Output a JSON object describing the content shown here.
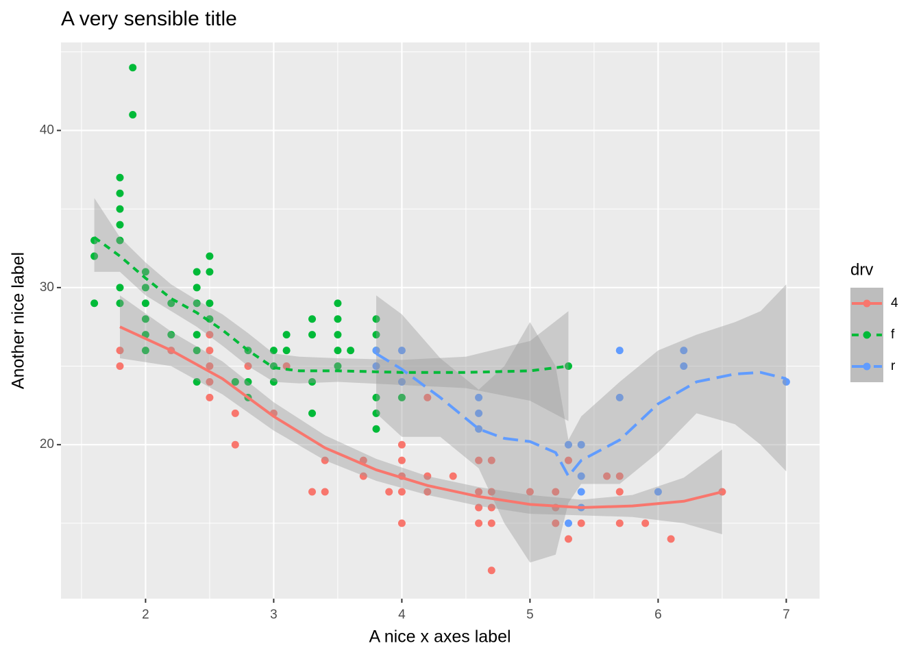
{
  "chart_data": {
    "type": "scatter",
    "title": "A very sensible title",
    "x_label": "A nice x axes label",
    "y_label": "Another nice label",
    "legend_title": "drv",
    "legend_position": "right",
    "grid": true,
    "xlim": [
      1.34,
      7.26
    ],
    "ylim": [
      10.2,
      45.6
    ],
    "xticks": [
      2,
      3,
      4,
      5,
      6,
      7
    ],
    "yticks": [
      20,
      30,
      40
    ],
    "xminor": [
      1.5,
      2.5,
      3.5,
      4.5,
      5.5,
      6.5
    ],
    "yminor": [
      15,
      25,
      35,
      45
    ],
    "series": [
      {
        "name": "4",
        "color": "#F8766D",
        "linetype": "solid",
        "x": [
          1.8,
          1.8,
          2.2,
          2.5,
          2.5,
          2.5,
          2.5,
          2.5,
          2.7,
          2.7,
          2.7,
          2.8,
          3.0,
          3.1,
          3.3,
          3.4,
          3.4,
          3.7,
          3.7,
          3.9,
          4.0,
          4.0,
          4.0,
          4.0,
          4.0,
          4.2,
          4.2,
          4.2,
          4.4,
          4.6,
          4.6,
          4.6,
          4.6,
          4.7,
          4.7,
          4.7,
          4.7,
          4.7,
          5.0,
          5.2,
          5.2,
          5.2,
          5.3,
          5.3,
          5.4,
          5.6,
          5.7,
          5.7,
          5.7,
          5.9,
          6.1,
          6.5
        ],
        "values": [
          26,
          25,
          26,
          27,
          26,
          25,
          24,
          23,
          22,
          20,
          24,
          25,
          22,
          25,
          17,
          19,
          17,
          19,
          18,
          17,
          20,
          19,
          18,
          17,
          15,
          23,
          18,
          17,
          18,
          19,
          17,
          16,
          15,
          19,
          17,
          16,
          15,
          12,
          17,
          17,
          16,
          15,
          19,
          14,
          15,
          18,
          18,
          17,
          15,
          15,
          14,
          17
        ],
        "smooth": {
          "x": [
            1.8,
            2.2,
            2.6,
            3.0,
            3.4,
            3.8,
            4.2,
            4.6,
            5.0,
            5.4,
            5.8,
            6.2,
            6.5
          ],
          "y": [
            27.5,
            26,
            24.2,
            21.8,
            19.8,
            18.4,
            17.4,
            16.7,
            16.2,
            16,
            16.1,
            16.4,
            17
          ],
          "lower": [
            25.5,
            25,
            23.2,
            20.9,
            19,
            17.7,
            16.8,
            16.1,
            15.6,
            15.5,
            15.4,
            15,
            14.3
          ],
          "upper": [
            29.5,
            27.2,
            25.3,
            22.7,
            20.6,
            19.1,
            18,
            17.3,
            16.8,
            16.5,
            16.8,
            17.9,
            19.7
          ]
        }
      },
      {
        "name": "f",
        "color": "#00BA38",
        "linetype": "dashed",
        "x": [
          1.6,
          1.6,
          1.6,
          1.8,
          1.8,
          1.8,
          1.8,
          1.8,
          1.8,
          1.8,
          1.9,
          1.9,
          2.0,
          2.0,
          2.0,
          2.0,
          2.0,
          2.0,
          2.2,
          2.2,
          2.4,
          2.4,
          2.4,
          2.4,
          2.4,
          2.4,
          2.5,
          2.5,
          2.5,
          2.5,
          2.7,
          2.8,
          2.8,
          2.8,
          3.0,
          3.0,
          3.0,
          3.1,
          3.1,
          3.3,
          3.3,
          3.3,
          3.3,
          3.5,
          3.5,
          3.5,
          3.5,
          3.5,
          3.6,
          3.8,
          3.8,
          3.8,
          3.8,
          3.8,
          3.8,
          4.0,
          5.3
        ],
        "values": [
          33,
          32,
          29,
          37,
          36,
          35,
          34,
          33,
          30,
          29,
          44,
          41,
          31,
          30,
          29,
          28,
          27,
          26,
          29,
          27,
          31,
          30,
          29,
          27,
          26,
          24,
          32,
          31,
          29,
          28,
          24,
          26,
          24,
          23,
          26,
          25,
          24,
          27,
          26,
          28,
          27,
          24,
          22,
          29,
          28,
          27,
          26,
          25,
          26,
          28,
          27,
          26,
          23,
          22,
          21,
          23,
          25
        ],
        "smooth": {
          "x": [
            1.6,
            1.8,
            2.0,
            2.2,
            2.4,
            2.6,
            2.8,
            3.0,
            3.2,
            3.5,
            4.0,
            4.5,
            5.0,
            5.3
          ],
          "y": [
            33.2,
            32,
            30.6,
            29.3,
            28.4,
            27.3,
            26,
            24.9,
            24.7,
            24.7,
            24.6,
            24.6,
            24.7,
            25
          ],
          "lower": [
            31,
            31,
            29.5,
            28.5,
            27.5,
            26.3,
            25,
            24,
            23.9,
            24,
            23.8,
            23.6,
            22.8,
            21.5
          ],
          "upper": [
            35.7,
            33.2,
            31.6,
            30.2,
            29.2,
            28.3,
            27.1,
            25.8,
            25.6,
            25.5,
            25.4,
            25.6,
            26.6,
            28.5
          ]
        }
      },
      {
        "name": "r",
        "color": "#619CFF",
        "linetype": "longdash",
        "x": [
          3.8,
          3.8,
          4.0,
          4.0,
          4.6,
          4.6,
          4.6,
          5.3,
          5.3,
          5.4,
          5.4,
          5.4,
          5.4,
          5.7,
          5.7,
          6.0,
          6.2,
          6.2,
          7.0
        ],
        "values": [
          26,
          25,
          26,
          24,
          23,
          22,
          21,
          20,
          15,
          20,
          18,
          17,
          16,
          26,
          23,
          17,
          26,
          25,
          24
        ],
        "smooth": {
          "x": [
            3.8,
            4.0,
            4.3,
            4.6,
            4.8,
            5.0,
            5.2,
            5.3,
            5.4,
            5.7,
            6.0,
            6.3,
            6.6,
            6.8,
            7.0
          ],
          "y": [
            25.8,
            24.8,
            23,
            21,
            20.4,
            20.2,
            19.5,
            18,
            19,
            20.3,
            22.6,
            24,
            24.5,
            24.6,
            24.2
          ],
          "lower": [
            22,
            20.5,
            20.5,
            18.5,
            15,
            12.5,
            13,
            16.3,
            17.5,
            17.5,
            19.5,
            22,
            21.3,
            20,
            18.3
          ],
          "upper": [
            29.5,
            28.3,
            25.5,
            23.5,
            25,
            27.8,
            25,
            20.3,
            21.8,
            24,
            26,
            27,
            27.8,
            28.5,
            30.2
          ]
        }
      }
    ]
  }
}
